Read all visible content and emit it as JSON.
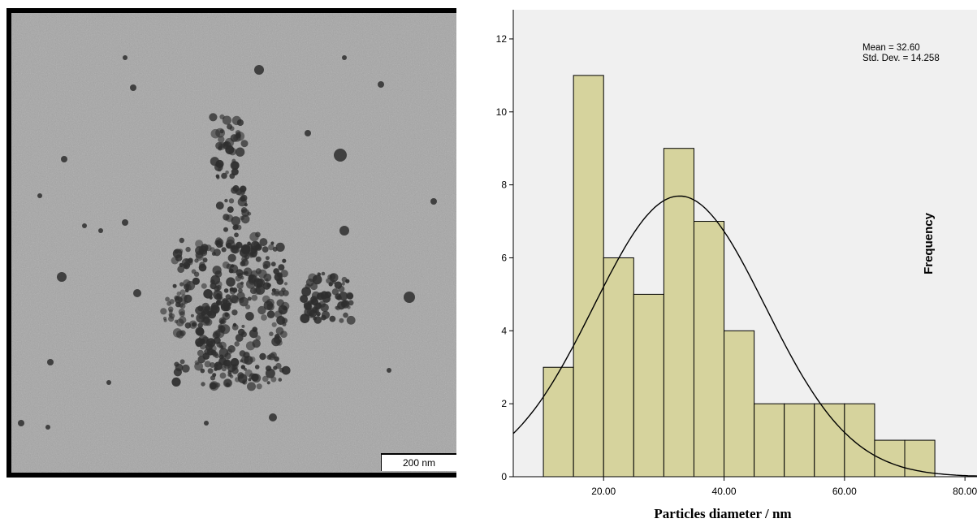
{
  "micrograph": {
    "scale_bar_label": "200 nm"
  },
  "chart_data": {
    "type": "bar",
    "subtype": "histogram",
    "bins": [
      {
        "x0": 10,
        "x1": 15,
        "count": 3
      },
      {
        "x0": 15,
        "x1": 20,
        "count": 11
      },
      {
        "x0": 20,
        "x1": 25,
        "count": 6
      },
      {
        "x0": 25,
        "x1": 30,
        "count": 5
      },
      {
        "x0": 30,
        "x1": 35,
        "count": 9
      },
      {
        "x0": 35,
        "x1": 40,
        "count": 7
      },
      {
        "x0": 40,
        "x1": 45,
        "count": 4
      },
      {
        "x0": 45,
        "x1": 50,
        "count": 2
      },
      {
        "x0": 50,
        "x1": 55,
        "count": 2
      },
      {
        "x0": 55,
        "x1": 60,
        "count": 2
      },
      {
        "x0": 60,
        "x1": 65,
        "count": 2
      },
      {
        "x0": 65,
        "x1": 70,
        "count": 1
      },
      {
        "x0": 70,
        "x1": 75,
        "count": 1
      }
    ],
    "normal_curve": {
      "mean": 32.6,
      "std_dev": 14.258
    },
    "stats_lines": [
      "Mean = 32.60",
      "Std. Dev. = 14.258"
    ],
    "xlabel": "Particles diameter / nm",
    "ylabel": "Frequency",
    "xlim": [
      5,
      82
    ],
    "ylim": [
      0,
      12.8
    ],
    "x_ticks": [
      20,
      40,
      60,
      80
    ],
    "x_tick_labels": [
      "20.00",
      "40.00",
      "60.00",
      "80.00"
    ],
    "y_ticks": [
      0,
      2,
      4,
      6,
      8,
      10,
      12
    ],
    "y_tick_labels": [
      "0",
      "2",
      "4",
      "6",
      "8",
      "10",
      "12"
    ],
    "grid": false,
    "legend": "none",
    "colors": {
      "bar_fill": "#d6d39d",
      "bar_stroke": "#000000",
      "plot_background": "#f0f0f0",
      "curve": "#000000"
    }
  }
}
